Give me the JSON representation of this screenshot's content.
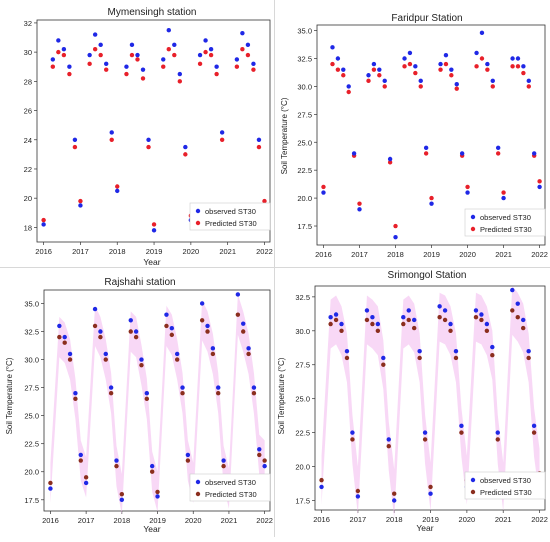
{
  "figure": {
    "colors": {
      "observed": "#1f28e6",
      "predicted_red": "#e8202a",
      "predicted_brown": "#8b2e1e",
      "band": "#f2b8ee"
    }
  },
  "chart_data": [
    {
      "id": "mymensingh",
      "type": "scatter",
      "title": "Mymensingh station",
      "xlabel": "Year",
      "ylabel": "",
      "xlim": [
        2015.82,
        2022.15
      ],
      "ylim": [
        17.0,
        32.2
      ],
      "xticks": [
        2016,
        2017,
        2018,
        2019,
        2020,
        2021,
        2022
      ],
      "yticks": [
        18,
        20,
        22,
        24,
        26,
        28,
        30,
        32
      ],
      "ytick_labels": [
        "18",
        "20",
        "22",
        "24",
        "26",
        "28",
        "30",
        "32"
      ],
      "legend_position": "lower-right",
      "series": [
        {
          "name": "observed ST30",
          "marker": "dot",
          "color": "#1f28e6",
          "x": [
            2016.0,
            2016.25,
            2016.4,
            2016.55,
            2016.7,
            2016.85,
            2017.0,
            2017.25,
            2017.4,
            2017.55,
            2017.7,
            2017.85,
            2018.0,
            2018.25,
            2018.4,
            2018.55,
            2018.7,
            2018.85,
            2019.0,
            2019.25,
            2019.4,
            2019.55,
            2019.7,
            2019.85,
            2020.0,
            2020.25,
            2020.4,
            2020.55,
            2020.7,
            2020.85,
            2021.0,
            2021.25,
            2021.4,
            2021.55,
            2021.7,
            2021.85,
            2022.0
          ],
          "y": [
            18.2,
            29.5,
            30.8,
            30.2,
            29.0,
            24.0,
            19.5,
            29.8,
            31.2,
            30.5,
            29.2,
            24.5,
            20.5,
            29.0,
            30.5,
            29.8,
            28.8,
            24.0,
            17.8,
            29.5,
            31.5,
            30.5,
            28.5,
            23.5,
            18.5,
            29.8,
            30.8,
            30.2,
            29.0,
            24.5,
            19.0,
            29.5,
            31.3,
            30.5,
            29.2,
            24.0,
            19.5
          ]
        },
        {
          "name": "Predicted ST30",
          "marker": "dot",
          "color": "#e8202a",
          "x": [
            2016.0,
            2016.25,
            2016.4,
            2016.55,
            2016.7,
            2016.85,
            2017.0,
            2017.25,
            2017.4,
            2017.55,
            2017.7,
            2017.85,
            2018.0,
            2018.25,
            2018.4,
            2018.55,
            2018.7,
            2018.85,
            2019.0,
            2019.25,
            2019.4,
            2019.55,
            2019.7,
            2019.85,
            2020.0,
            2020.25,
            2020.4,
            2020.55,
            2020.7,
            2020.85,
            2021.0,
            2021.25,
            2021.4,
            2021.55,
            2021.7,
            2021.85,
            2022.0
          ],
          "y": [
            18.5,
            29.0,
            30.0,
            29.8,
            28.5,
            23.5,
            19.8,
            29.2,
            30.2,
            29.8,
            28.8,
            24.0,
            20.8,
            28.5,
            29.8,
            29.5,
            28.2,
            23.5,
            18.2,
            29.0,
            30.2,
            29.8,
            28.0,
            23.0,
            18.8,
            29.2,
            30.0,
            29.8,
            28.5,
            24.0,
            19.2,
            29.0,
            30.2,
            29.8,
            28.8,
            23.5,
            19.8
          ]
        }
      ]
    },
    {
      "id": "faridpur",
      "type": "scatter",
      "title": "Faridpur Station",
      "xlabel": "",
      "ylabel": "Soil Temperature (°C)",
      "xlim": [
        2015.82,
        2022.15
      ],
      "ylim": [
        15.8,
        35.5
      ],
      "xticks": [
        2016,
        2017,
        2018,
        2019,
        2020,
        2021,
        2022
      ],
      "yticks": [
        17.5,
        20.0,
        22.5,
        25.0,
        27.5,
        30.0,
        32.5,
        35.0
      ],
      "ytick_labels": [
        "17.5",
        "20.0",
        "22.5",
        "25.0",
        "27.5",
        "30.0",
        "32.5",
        "35.0"
      ],
      "legend_position": "lower-right",
      "series": [
        {
          "name": "observed ST30",
          "marker": "dot",
          "color": "#1f28e6",
          "x": [
            2016.0,
            2016.25,
            2016.4,
            2016.55,
            2016.7,
            2016.85,
            2017.0,
            2017.25,
            2017.4,
            2017.55,
            2017.7,
            2017.85,
            2018.0,
            2018.25,
            2018.4,
            2018.55,
            2018.7,
            2018.85,
            2019.0,
            2019.25,
            2019.4,
            2019.55,
            2019.7,
            2019.85,
            2020.0,
            2020.25,
            2020.4,
            2020.55,
            2020.7,
            2020.85,
            2021.0,
            2021.25,
            2021.4,
            2021.55,
            2021.7,
            2021.85,
            2022.0
          ],
          "y": [
            20.5,
            33.5,
            32.5,
            31.5,
            30.0,
            24.0,
            19.0,
            31.0,
            32.0,
            31.5,
            30.5,
            23.5,
            16.5,
            32.5,
            33.0,
            31.8,
            30.5,
            24.5,
            19.5,
            32.0,
            32.8,
            31.5,
            30.2,
            24.0,
            20.5,
            33.0,
            34.8,
            32.0,
            30.5,
            24.5,
            20.0,
            32.5,
            32.5,
            31.8,
            30.5,
            24.0,
            21.0
          ]
        },
        {
          "name": "Predicted ST30",
          "marker": "dot",
          "color": "#e8202a",
          "x": [
            2016.0,
            2016.25,
            2016.4,
            2016.55,
            2016.7,
            2016.85,
            2017.0,
            2017.25,
            2017.4,
            2017.55,
            2017.7,
            2017.85,
            2018.0,
            2018.25,
            2018.4,
            2018.55,
            2018.7,
            2018.85,
            2019.0,
            2019.25,
            2019.4,
            2019.55,
            2019.7,
            2019.85,
            2020.0,
            2020.25,
            2020.4,
            2020.55,
            2020.7,
            2020.85,
            2021.0,
            2021.25,
            2021.4,
            2021.55,
            2021.7,
            2021.85,
            2022.0
          ],
          "y": [
            21.0,
            32.0,
            31.5,
            31.0,
            29.5,
            23.8,
            19.5,
            30.5,
            31.5,
            31.0,
            30.0,
            23.2,
            17.5,
            31.8,
            32.0,
            31.2,
            30.0,
            24.0,
            20.0,
            31.5,
            32.0,
            31.0,
            29.8,
            23.8,
            21.0,
            31.8,
            32.5,
            31.5,
            30.0,
            24.0,
            20.5,
            31.8,
            31.8,
            31.2,
            30.0,
            23.8,
            21.5
          ]
        }
      ]
    },
    {
      "id": "rajshahi",
      "type": "scatter",
      "title": "Rajshahi station",
      "xlabel": "Year",
      "ylabel": "Soil Temperature (°C)",
      "xlim": [
        2015.82,
        2022.15
      ],
      "ylim": [
        16.5,
        36.2
      ],
      "xticks": [
        2016,
        2017,
        2018,
        2019,
        2020,
        2021,
        2022
      ],
      "yticks": [
        17.5,
        20.0,
        22.5,
        25.0,
        27.5,
        30.0,
        32.5,
        35.0
      ],
      "ytick_labels": [
        "17.5",
        "20.0",
        "22.5",
        "25.0",
        "27.5",
        "30.0",
        "32.5",
        "35.0"
      ],
      "legend_position": "lower-right",
      "band": true,
      "series": [
        {
          "name": "observed ST30",
          "marker": "dot",
          "color": "#1f28e6",
          "x": [
            2016.0,
            2016.25,
            2016.4,
            2016.55,
            2016.7,
            2016.85,
            2017.0,
            2017.25,
            2017.4,
            2017.55,
            2017.7,
            2017.85,
            2018.0,
            2018.25,
            2018.4,
            2018.55,
            2018.7,
            2018.85,
            2019.0,
            2019.25,
            2019.4,
            2019.55,
            2019.7,
            2019.85,
            2020.0,
            2020.25,
            2020.4,
            2020.55,
            2020.7,
            2020.85,
            2021.0,
            2021.25,
            2021.4,
            2021.55,
            2021.7,
            2021.85,
            2022.0
          ],
          "y": [
            18.5,
            33.0,
            32.0,
            30.5,
            27.0,
            21.5,
            19.0,
            34.5,
            32.5,
            30.5,
            27.5,
            21.0,
            17.5,
            33.5,
            32.5,
            30.0,
            27.0,
            20.5,
            17.8,
            34.0,
            32.8,
            30.5,
            27.5,
            21.5,
            18.5,
            35.0,
            33.0,
            31.0,
            27.5,
            21.0,
            18.0,
            35.8,
            33.2,
            31.0,
            27.5,
            22.0,
            20.5
          ]
        },
        {
          "name": "Predicted ST30",
          "marker": "dot",
          "color": "#8b2e1e",
          "x": [
            2016.0,
            2016.25,
            2016.4,
            2016.55,
            2016.7,
            2016.85,
            2017.0,
            2017.25,
            2017.4,
            2017.55,
            2017.7,
            2017.85,
            2018.0,
            2018.25,
            2018.4,
            2018.55,
            2018.7,
            2018.85,
            2019.0,
            2019.25,
            2019.4,
            2019.55,
            2019.7,
            2019.85,
            2020.0,
            2020.25,
            2020.4,
            2020.55,
            2020.7,
            2020.85,
            2021.0,
            2021.25,
            2021.4,
            2021.55,
            2021.7,
            2021.85,
            2022.0
          ],
          "y": [
            19.0,
            32.0,
            31.5,
            30.0,
            26.5,
            21.0,
            19.5,
            33.0,
            32.0,
            30.0,
            27.0,
            20.5,
            18.0,
            32.5,
            32.0,
            29.5,
            26.5,
            20.0,
            18.2,
            33.0,
            32.2,
            30.0,
            27.0,
            21.0,
            19.0,
            33.5,
            32.5,
            30.5,
            27.0,
            20.5,
            18.5,
            34.0,
            32.5,
            30.5,
            27.0,
            21.5,
            21.0
          ]
        }
      ]
    },
    {
      "id": "srimongol",
      "type": "scatter",
      "title": "Srimongol Station",
      "xlabel": "Year",
      "ylabel": "Soil Temperature (°C)",
      "xlim": [
        2015.82,
        2022.15
      ],
      "ylim": [
        16.8,
        33.3
      ],
      "xticks": [
        2016,
        2017,
        2018,
        2019,
        2020,
        2021,
        2022
      ],
      "yticks": [
        17.5,
        20.0,
        22.5,
        25.0,
        27.5,
        30.0,
        32.5
      ],
      "ytick_labels": [
        "17.5",
        "20.0",
        "22.5",
        "25.0",
        "27.5",
        "30.0",
        "32.5"
      ],
      "legend_position": "lower-right",
      "band": true,
      "series": [
        {
          "name": "observed ST30",
          "marker": "dot",
          "color": "#1f28e6",
          "x": [
            2016.0,
            2016.25,
            2016.4,
            2016.55,
            2016.7,
            2016.85,
            2017.0,
            2017.25,
            2017.4,
            2017.55,
            2017.7,
            2017.85,
            2018.0,
            2018.25,
            2018.4,
            2018.55,
            2018.7,
            2018.85,
            2019.0,
            2019.25,
            2019.4,
            2019.55,
            2019.7,
            2019.85,
            2020.0,
            2020.25,
            2020.4,
            2020.55,
            2020.7,
            2020.85,
            2021.0,
            2021.25,
            2021.4,
            2021.55,
            2021.7,
            2021.85,
            2022.0
          ],
          "y": [
            18.5,
            31.0,
            31.2,
            30.5,
            28.5,
            22.5,
            17.8,
            31.5,
            31.0,
            30.5,
            28.0,
            22.0,
            17.5,
            31.0,
            31.5,
            30.8,
            28.5,
            22.5,
            18.0,
            31.8,
            31.5,
            30.5,
            28.5,
            23.0,
            18.5,
            31.5,
            31.2,
            30.5,
            28.8,
            22.5,
            18.0,
            33.0,
            32.0,
            30.8,
            28.5,
            23.0,
            18.5
          ]
        },
        {
          "name": "Predicted ST30",
          "marker": "dot",
          "color": "#8b2e1e",
          "x": [
            2016.0,
            2016.25,
            2016.4,
            2016.55,
            2016.7,
            2016.85,
            2017.0,
            2017.25,
            2017.4,
            2017.55,
            2017.7,
            2017.85,
            2018.0,
            2018.25,
            2018.4,
            2018.55,
            2018.7,
            2018.85,
            2019.0,
            2019.25,
            2019.4,
            2019.55,
            2019.7,
            2019.85,
            2020.0,
            2020.25,
            2020.4,
            2020.55,
            2020.7,
            2020.85,
            2021.0,
            2021.25,
            2021.4,
            2021.55,
            2021.7,
            2021.85,
            2022.0
          ],
          "y": [
            19.0,
            30.5,
            30.8,
            30.0,
            28.0,
            22.0,
            18.2,
            30.8,
            30.5,
            30.0,
            27.5,
            21.5,
            18.0,
            30.5,
            30.8,
            30.2,
            28.0,
            22.0,
            18.5,
            31.0,
            30.8,
            30.0,
            28.0,
            22.5,
            19.0,
            31.0,
            30.8,
            30.0,
            28.2,
            22.0,
            18.5,
            31.5,
            31.0,
            30.2,
            28.0,
            22.5,
            19.5
          ]
        }
      ]
    }
  ]
}
